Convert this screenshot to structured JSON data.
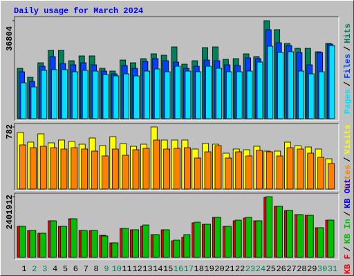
{
  "chart_data": [
    {
      "type": "bar",
      "title": "Daily usage for March 2024",
      "ylim": [
        0,
        36804
      ],
      "yticks": [
        36804
      ],
      "separator": "/",
      "legend_order": [
        2,
        1,
        0
      ],
      "series": [
        {
          "name": "Hits",
          "color": "#00805c",
          "values": [
            18922,
            15552,
            20995,
            25661,
            25661,
            21773,
            23587,
            23587,
            18922,
            17885,
            22032,
            20995,
            22550,
            24365,
            23846,
            26957,
            20477,
            21773,
            26698,
            26957,
            22291,
            22550,
            24365,
            23328,
            36804,
            33437,
            28253,
            26438,
            26438,
            25142,
            28253
          ]
        },
        {
          "name": "Files",
          "color": "#0040ff",
          "values": [
            17626,
            13997,
            19699,
            23328,
            20736,
            20218,
            20995,
            20218,
            17885,
            16848,
            19958,
            18922,
            21514,
            22550,
            21773,
            21254,
            18922,
            19699,
            22032,
            21773,
            20218,
            19958,
            22810,
            22550,
            33437,
            28512,
            27475,
            24883,
            20218,
            24883,
            27994
          ]
        },
        {
          "name": "Pages",
          "color": "#00e0ff",
          "values": [
            13478,
            11923,
            18144,
            18403,
            18403,
            17626,
            18144,
            17885,
            16589,
            16070,
            16848,
            16070,
            17885,
            18662,
            17626,
            19699,
            17885,
            17626,
            19699,
            18922,
            17626,
            17626,
            17885,
            21254,
            27216,
            24883,
            25142,
            17885,
            16848,
            17626,
            27475
          ]
        }
      ]
    },
    {
      "type": "bar",
      "ylim": [
        0,
        782
      ],
      "yticks": [
        782
      ],
      "separator": "/",
      "legend_order": [
        1,
        0
      ],
      "series": [
        {
          "name": "Visits",
          "color": "#ffff00",
          "values": [
            713,
            591,
            695,
            582,
            617,
            600,
            565,
            643,
            547,
            660,
            574,
            539,
            565,
            782,
            617,
            617,
            617,
            504,
            574,
            565,
            452,
            504,
            495,
            539,
            478,
            478,
            591,
            547,
            530,
            504,
            382
          ]
        },
        {
          "name": "Sites",
          "color": "#ff8000",
          "values": [
            556,
            521,
            539,
            521,
            504,
            521,
            504,
            478,
            417,
            504,
            426,
            495,
            513,
            617,
            504,
            513,
            521,
            391,
            469,
            547,
            391,
            469,
            417,
            487,
            469,
            417,
            521,
            504,
            452,
            400,
            322
          ]
        }
      ]
    },
    {
      "type": "bar",
      "ylim": [
        0,
        2401912
      ],
      "yticks": [
        2401912
      ],
      "separator": "/",
      "legend_order": [
        0,
        1,
        2
      ],
      "categories": [
        "1",
        "2",
        "3",
        "4",
        "5",
        "6",
        "7",
        "8",
        "9",
        "10",
        "11",
        "12",
        "13",
        "14",
        "15",
        "16",
        "17",
        "18",
        "19",
        "20",
        "21",
        "22",
        "23",
        "24",
        "25",
        "26",
        "27",
        "28",
        "29",
        "30",
        "31"
      ],
      "category_colors": [
        "#000000",
        "#00805c",
        "#00805c",
        "#000000",
        "#000000",
        "#000000",
        "#000000",
        "#000000",
        "#00805c",
        "#00805c",
        "#000000",
        "#000000",
        "#000000",
        "#000000",
        "#000000",
        "#00805c",
        "#00805c",
        "#000000",
        "#000000",
        "#000000",
        "#000000",
        "#000000",
        "#00805c",
        "#00805c",
        "#000000",
        "#000000",
        "#000000",
        "#000000",
        "#000000",
        "#00805c",
        "#00805c"
      ],
      "series": [
        {
          "name": "KB F",
          "color": "#ff0000",
          "values": [
            1228253,
            1064486,
            955308,
            1446609,
            1228253,
            1528493,
            1064486,
            1064486,
            873425,
            573186,
            1146370,
            1091781,
            1228253,
            900720,
            1091781,
            655069,
            791542,
            1364727,
            1310138,
            1583083,
            1228253,
            1446609,
            1555788,
            1446609,
            2374617,
            2019795,
            1856029,
            1692261,
            1664966,
            1173665,
            1473906
          ]
        },
        {
          "name": "KB In",
          "color": "#00c000",
          "values": [
            1228253,
            1064486,
            955308,
            1446609,
            1228253,
            1528493,
            1064486,
            1064486,
            846130,
            573186,
            1146370,
            1091781,
            1282843,
            900720,
            1091781,
            682363,
            900720,
            1392021,
            1310138,
            1583083,
            1228253,
            1473906,
            1583083,
            1446609,
            2401912,
            2019795,
            1856029,
            1692261,
            1664966,
            1173665,
            1473906
          ]
        },
        {
          "name": "KB Out",
          "color": "#0000ff"
        }
      ]
    }
  ]
}
